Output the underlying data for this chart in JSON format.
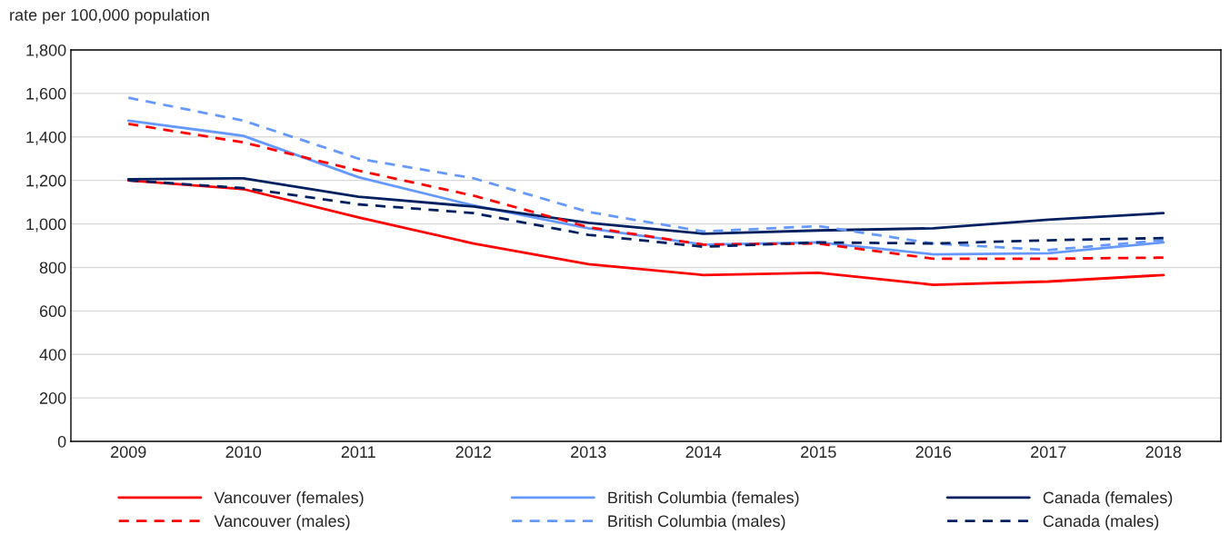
{
  "chart_data": {
    "type": "line",
    "ylabel": "rate per 100,000 population",
    "categories": [
      "2009",
      "2010",
      "2011",
      "2012",
      "2013",
      "2014",
      "2015",
      "2016",
      "2017",
      "2018"
    ],
    "series": [
      {
        "name": "Vancouver (females)",
        "color": "#ff0000",
        "line_style": "solid",
        "values": [
          1200,
          1160,
          1030,
          910,
          815,
          765,
          775,
          720,
          735,
          765
        ]
      },
      {
        "name": "British Columbia (females)",
        "color": "#6699ff",
        "line_style": "solid",
        "values": [
          1475,
          1405,
          1215,
          1085,
          980,
          905,
          915,
          860,
          865,
          915
        ]
      },
      {
        "name": "Canada (females)",
        "color": "#002060",
        "line_style": "solid",
        "values": [
          1205,
          1210,
          1125,
          1080,
          1005,
          955,
          970,
          980,
          1020,
          1050
        ]
      },
      {
        "name": "Vancouver (males)",
        "color": "#ff0000",
        "line_style": "dashed",
        "values": [
          1460,
          1375,
          1245,
          1130,
          985,
          905,
          910,
          840,
          840,
          845
        ]
      },
      {
        "name": "British Columbia (males)",
        "color": "#6699ff",
        "line_style": "dashed",
        "values": [
          1580,
          1475,
          1300,
          1210,
          1055,
          965,
          990,
          910,
          880,
          925
        ]
      },
      {
        "name": "Canada (males)",
        "color": "#002060",
        "line_style": "dashed",
        "values": [
          1200,
          1165,
          1090,
          1050,
          950,
          895,
          915,
          910,
          925,
          935
        ]
      }
    ],
    "ylim": [
      0,
      1800
    ],
    "yticks": [
      {
        "value": 0,
        "label": "0"
      },
      {
        "value": 200,
        "label": "200"
      },
      {
        "value": 400,
        "label": "400"
      },
      {
        "value": 600,
        "label": "600"
      },
      {
        "value": 800,
        "label": "800"
      },
      {
        "value": 1000,
        "label": "1,000"
      },
      {
        "value": 1200,
        "label": "1,200"
      },
      {
        "value": 1400,
        "label": "1,400"
      },
      {
        "value": 1600,
        "label": "1,600"
      },
      {
        "value": 1800,
        "label": "1,800"
      }
    ],
    "grid": "y",
    "legend": "bottom",
    "marker": "none"
  }
}
